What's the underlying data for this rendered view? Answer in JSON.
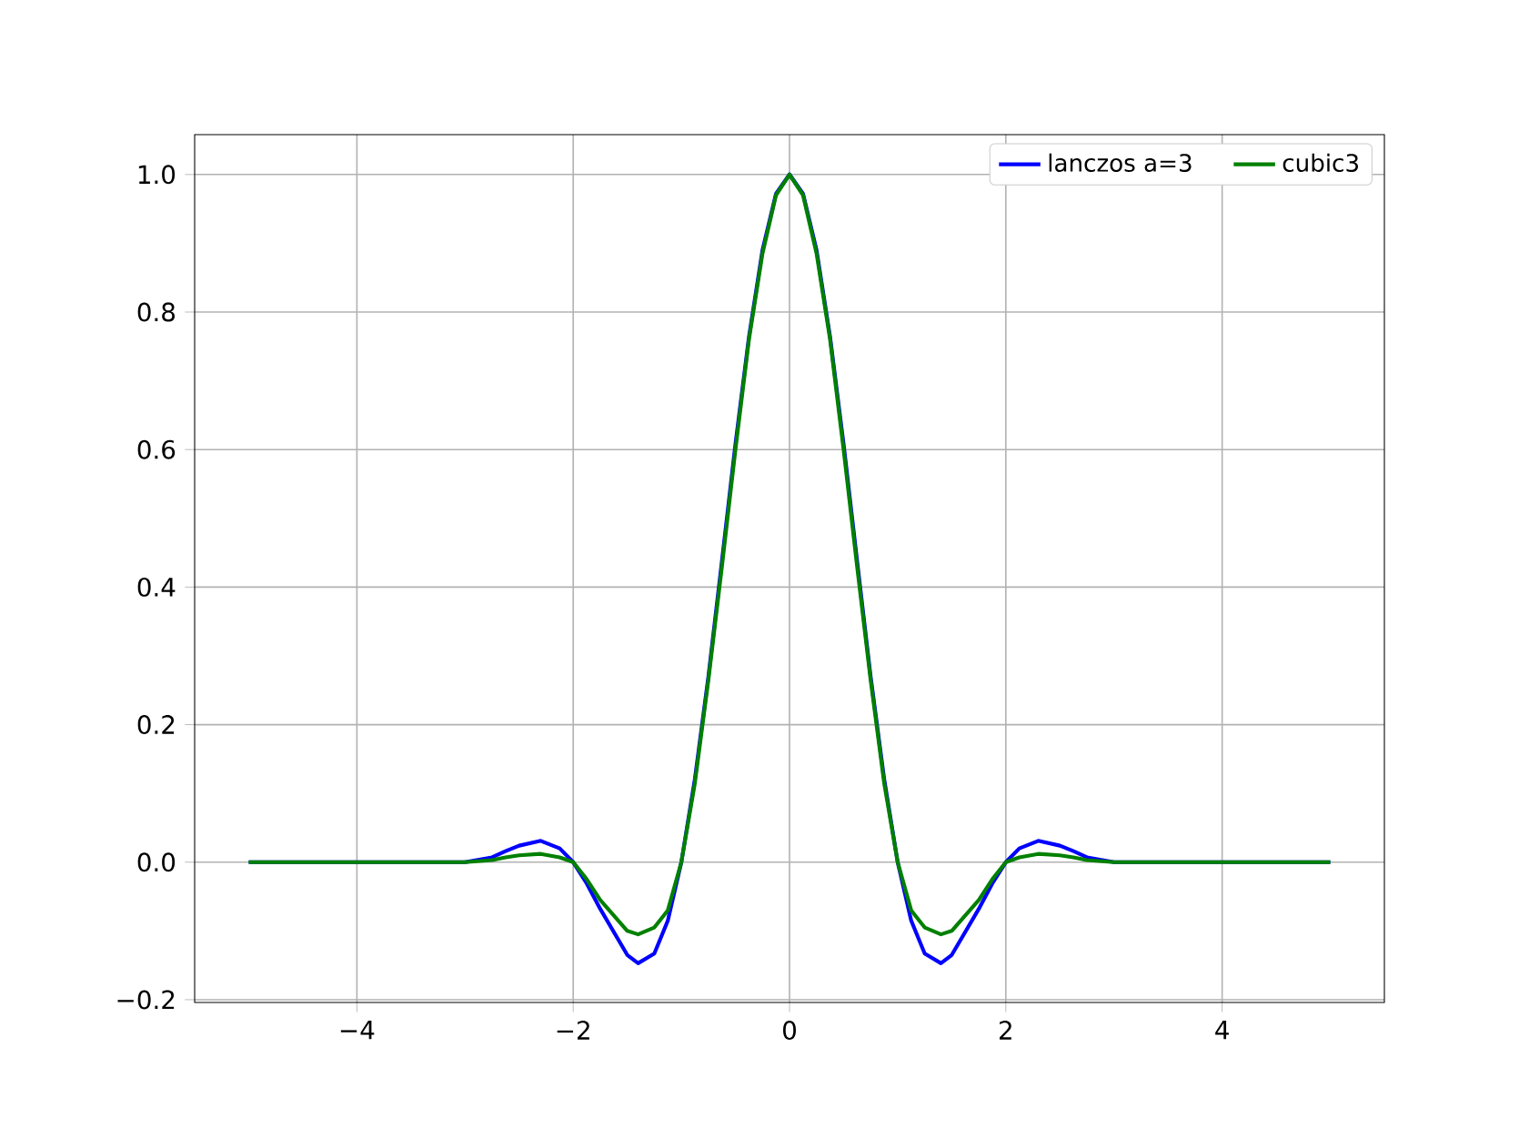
{
  "chart_data": {
    "type": "line",
    "x": [
      -5,
      -3,
      -2.75,
      -2.625,
      -2.5,
      -2.3,
      -2.125,
      -2,
      -1.875,
      -1.75,
      -1.5,
      -1.4,
      -1.25,
      -1.125,
      -1,
      -0.875,
      -0.75,
      -0.625,
      -0.5,
      -0.375,
      -0.25,
      -0.125,
      0,
      0.125,
      0.25,
      0.375,
      0.5,
      0.625,
      0.75,
      0.875,
      1,
      1.125,
      1.25,
      1.4,
      1.5,
      1.75,
      1.875,
      2,
      2.125,
      2.3,
      2.5,
      2.625,
      2.75,
      3,
      5
    ],
    "series": [
      {
        "name": "lanczos a=3",
        "color": "#0000ff",
        "values": [
          0,
          0,
          0.007,
          0.016,
          0.024,
          0.031,
          0.02,
          0,
          -0.031,
          -0.068,
          -0.135,
          -0.147,
          -0.133,
          -0.085,
          0,
          0.121,
          0.27,
          0.438,
          0.608,
          0.764,
          0.89,
          0.972,
          1,
          0.972,
          0.89,
          0.764,
          0.608,
          0.438,
          0.27,
          0.121,
          0,
          -0.085,
          -0.133,
          -0.147,
          -0.135,
          -0.068,
          -0.031,
          0,
          0.02,
          0.031,
          0.024,
          0.016,
          0.007,
          0,
          0
        ]
      },
      {
        "name": "cubic3",
        "color": "#008000",
        "values": [
          0,
          0,
          0.003,
          0.007,
          0.01,
          0.012,
          0.007,
          0,
          -0.025,
          -0.055,
          -0.1,
          -0.105,
          -0.095,
          -0.07,
          0,
          0.115,
          0.265,
          0.43,
          0.6,
          0.76,
          0.885,
          0.97,
          1,
          0.97,
          0.885,
          0.76,
          0.6,
          0.43,
          0.265,
          0.115,
          0,
          -0.07,
          -0.095,
          -0.105,
          -0.1,
          -0.055,
          -0.025,
          0,
          0.007,
          0.012,
          0.01,
          0.007,
          0.003,
          0,
          0
        ]
      }
    ],
    "xlim": [
      -5.5,
      5.5
    ],
    "ylim": [
      -0.204,
      1.058
    ],
    "xticks": [
      {
        "value": -4,
        "label": "−4"
      },
      {
        "value": -2,
        "label": "−2"
      },
      0,
      2,
      4
    ],
    "yticks": [
      {
        "value": -0.2,
        "label": "−0.2"
      },
      {
        "value": 0,
        "label": "0.0"
      },
      0.2,
      0.4,
      0.6,
      0.8,
      {
        "value": 1,
        "label": "1.0"
      }
    ],
    "grid": true,
    "legend": "top right"
  }
}
